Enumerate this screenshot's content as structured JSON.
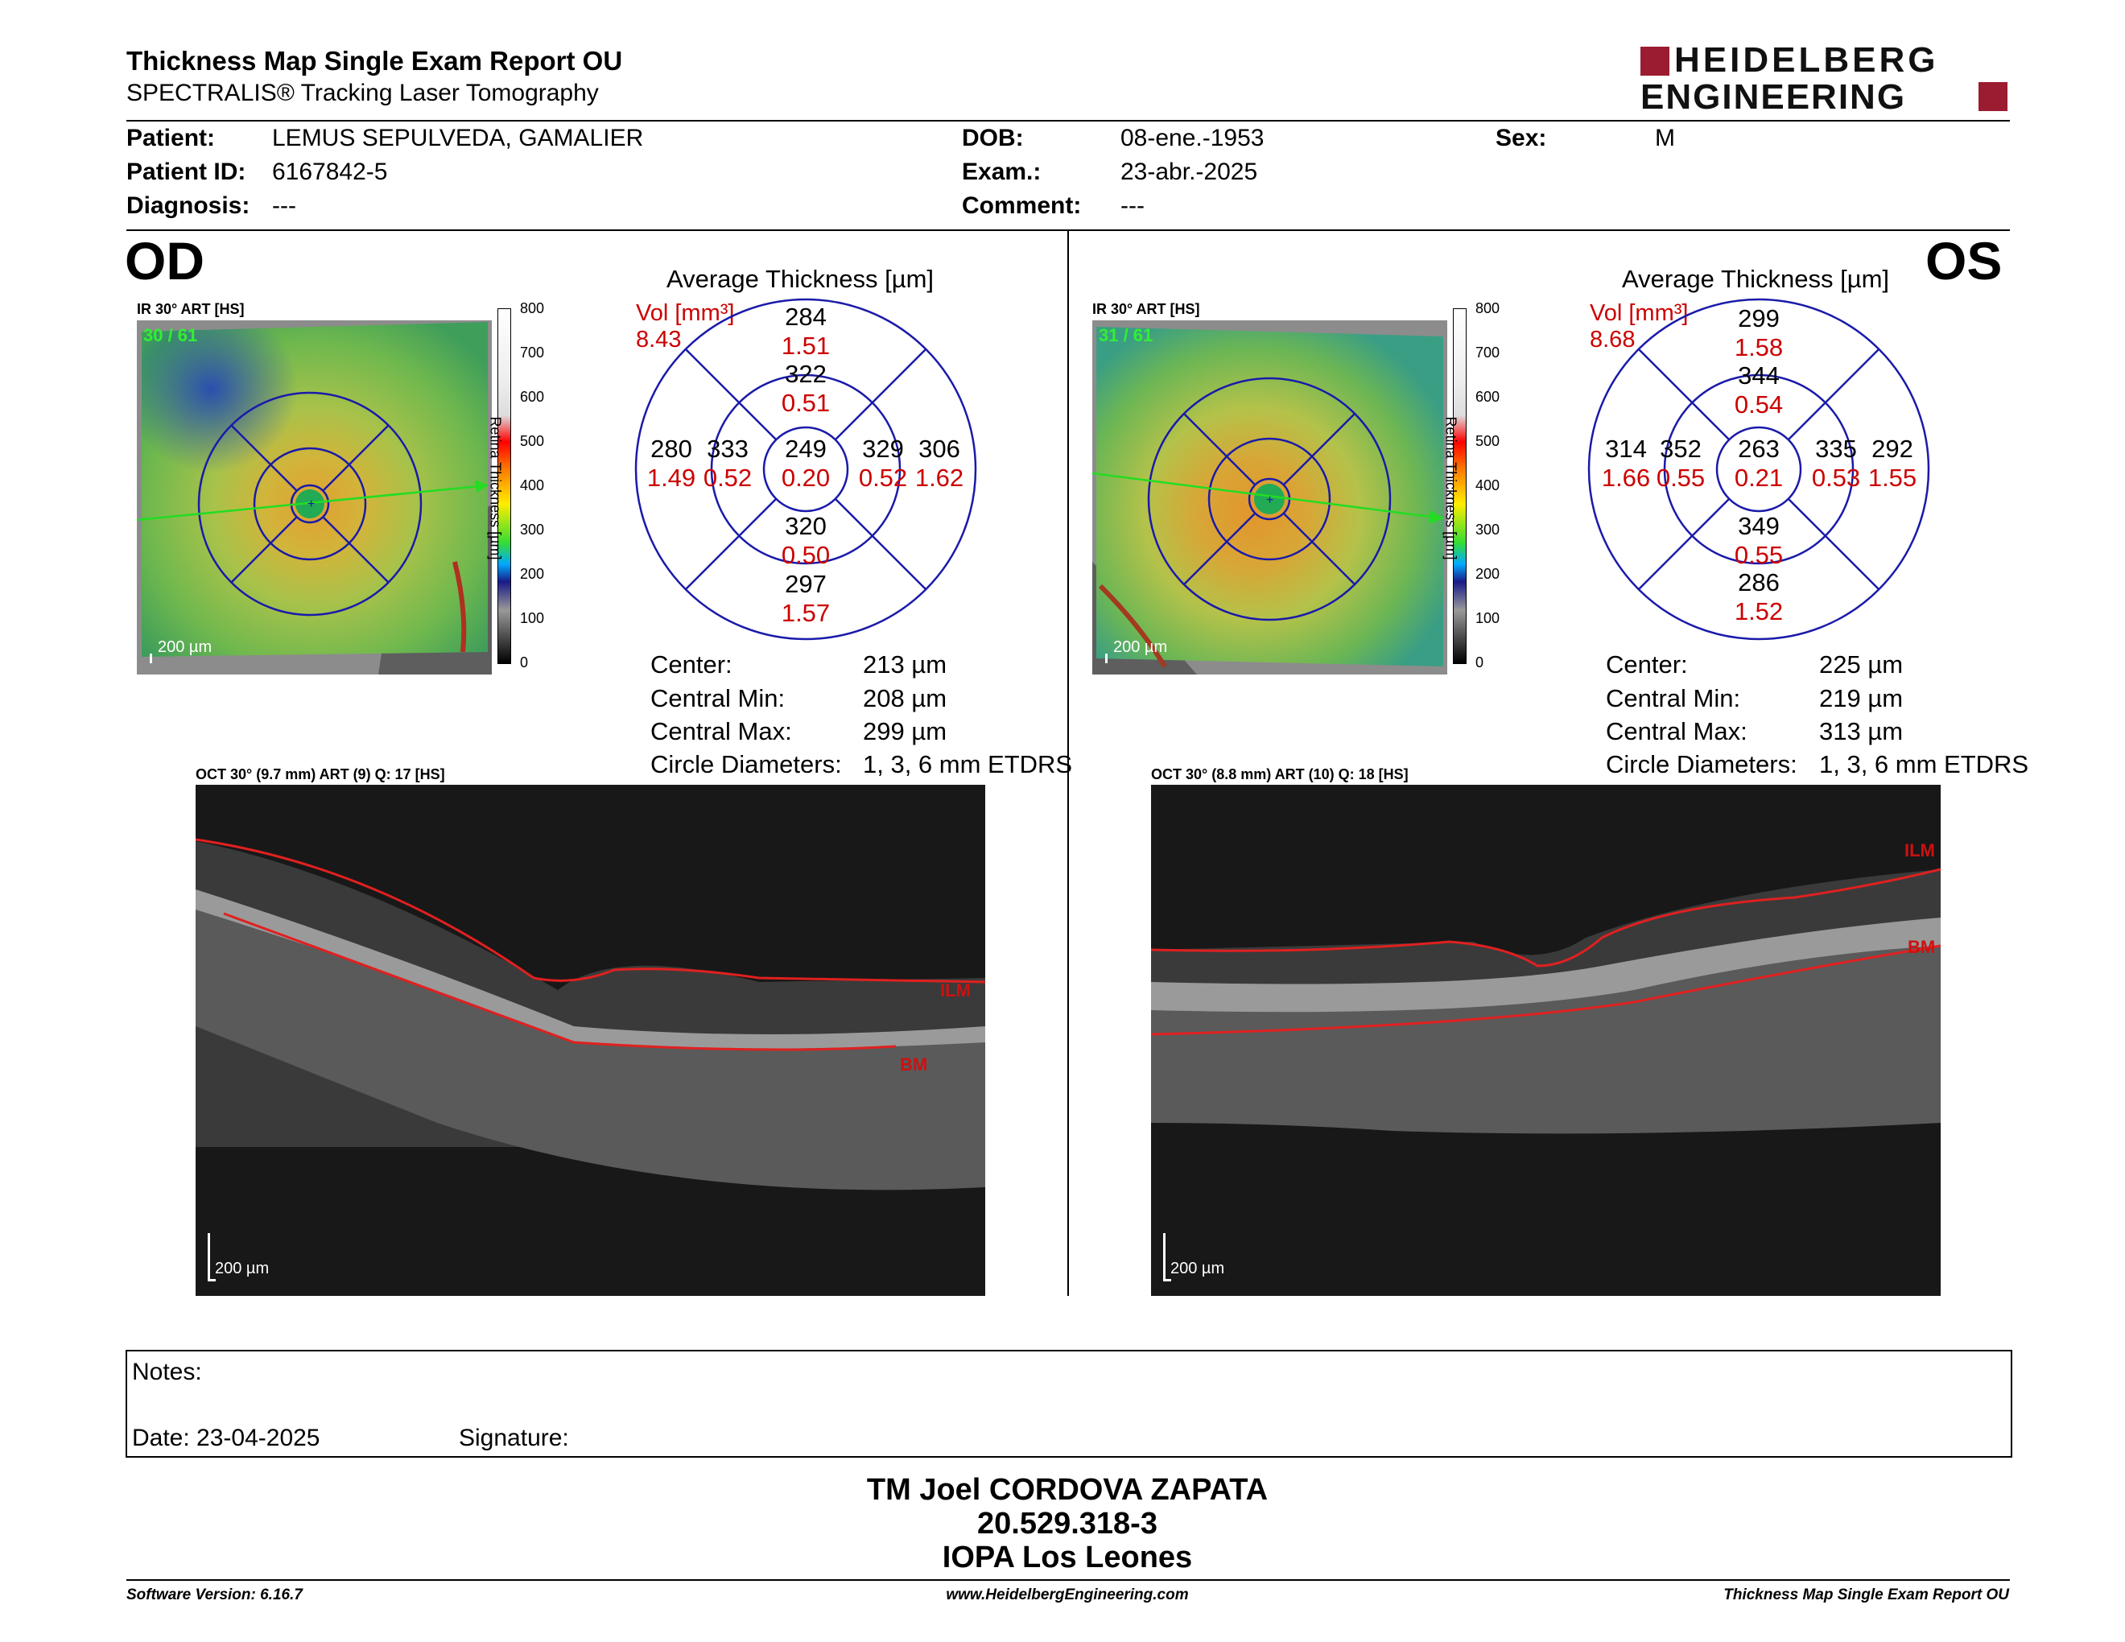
{
  "header": {
    "title": "Thickness Map Single Exam Report OU",
    "subtitle": "SPECTRALIS® Tracking Laser Tomography",
    "logo_line1": "HEIDELBERG",
    "logo_line2": "ENGINEERING"
  },
  "patient": {
    "patient_label": "Patient:",
    "patient_value": "LEMUS SEPULVEDA, GAMALIER",
    "id_label": "Patient ID:",
    "id_value": "6167842-5",
    "diagnosis_label": "Diagnosis:",
    "diagnosis_value": "---",
    "dob_label": "DOB:",
    "dob_value": "08-ene.-1953",
    "exam_label": "Exam.:",
    "exam_value": "23-abr.-2025",
    "comment_label": "Comment:",
    "comment_value": "---",
    "sex_label": "Sex:",
    "sex_value": "M"
  },
  "od": {
    "eye": "OD",
    "ir_label": "IR 30° ART [HS]",
    "ir_art": "30 / 61",
    "scale": "200 µm",
    "colorbar_title": "Retina Thickness [µm]",
    "colorbar_ticks": [
      "800",
      "700",
      "600",
      "500",
      "400",
      "300",
      "200",
      "100",
      "0"
    ],
    "avg_title": "Average Thickness [µm]",
    "vol_label": "Vol [mm³]",
    "vol_total": "8.43",
    "sectors": {
      "center": {
        "t": "249",
        "v": "0.20"
      },
      "inner_sup": {
        "t": "322",
        "v": "0.51"
      },
      "inner_inf": {
        "t": "320",
        "v": "0.50"
      },
      "inner_left": {
        "t": "333",
        "v": "0.52"
      },
      "inner_right": {
        "t": "329",
        "v": "0.52"
      },
      "outer_sup": {
        "t": "284",
        "v": "1.51"
      },
      "outer_inf": {
        "t": "297",
        "v": "1.57"
      },
      "outer_left": {
        "t": "280",
        "v": "1.49"
      },
      "outer_right": {
        "t": "306",
        "v": "1.62"
      }
    },
    "stats": [
      {
        "label": "Center:",
        "value": "213 µm"
      },
      {
        "label": "Central Min:",
        "value": "208 µm"
      },
      {
        "label": "Central Max:",
        "value": "299 µm"
      },
      {
        "label": "Circle Diameters:",
        "value": "1, 3, 6 mm ETDRS"
      }
    ],
    "oct_label": "OCT 30° (9.7 mm) ART (9) Q: 17 [HS]",
    "ilm": "ILM",
    "bm": "BM",
    "oct_scale": "200 µm"
  },
  "os": {
    "eye": "OS",
    "ir_label": "IR 30° ART [HS]",
    "ir_art": "31 / 61",
    "scale": "200 µm",
    "colorbar_title": "Retina Thickness [µm]",
    "colorbar_ticks": [
      "800",
      "700",
      "600",
      "500",
      "400",
      "300",
      "200",
      "100",
      "0"
    ],
    "avg_title": "Average Thickness [µm]",
    "vol_label": "Vol [mm³]",
    "vol_total": "8.68",
    "sectors": {
      "center": {
        "t": "263",
        "v": "0.21"
      },
      "inner_sup": {
        "t": "344",
        "v": "0.54"
      },
      "inner_inf": {
        "t": "349",
        "v": "0.55"
      },
      "inner_left": {
        "t": "352",
        "v": "0.55"
      },
      "inner_right": {
        "t": "335",
        "v": "0.53"
      },
      "outer_sup": {
        "t": "299",
        "v": "1.58"
      },
      "outer_inf": {
        "t": "286",
        "v": "1.52"
      },
      "outer_left": {
        "t": "314",
        "v": "1.66"
      },
      "outer_right": {
        "t": "292",
        "v": "1.55"
      }
    },
    "stats": [
      {
        "label": "Center:",
        "value": "225 µm"
      },
      {
        "label": "Central Min:",
        "value": "219 µm"
      },
      {
        "label": "Central Max:",
        "value": "313 µm"
      },
      {
        "label": "Circle Diameters:",
        "value": "1, 3, 6 mm ETDRS"
      }
    ],
    "oct_label": "OCT 30° (8.8 mm) ART (10) Q: 18 [HS]",
    "ilm": "ILM",
    "bm": "BM",
    "oct_scale": "200 µm"
  },
  "notes": {
    "notes_label": "Notes:",
    "date_label": "Date: 23-04-2025",
    "signature_label": "Signature:"
  },
  "signer": {
    "name": "TM Joel CORDOVA ZAPATA",
    "id": "20.529.318-3",
    "institution": "IOPA Los Leones"
  },
  "footer": {
    "software": "Software Version: 6.16.7",
    "website": "www.HeidelbergEngineering.com",
    "report": "Thickness Map Single Exam Report OU"
  },
  "colors": {
    "brand_red": "#9b1b30",
    "vol_red": "#cc0000",
    "etdrs_blue": "#1a1aaa",
    "arrow_green": "#22dd22"
  }
}
